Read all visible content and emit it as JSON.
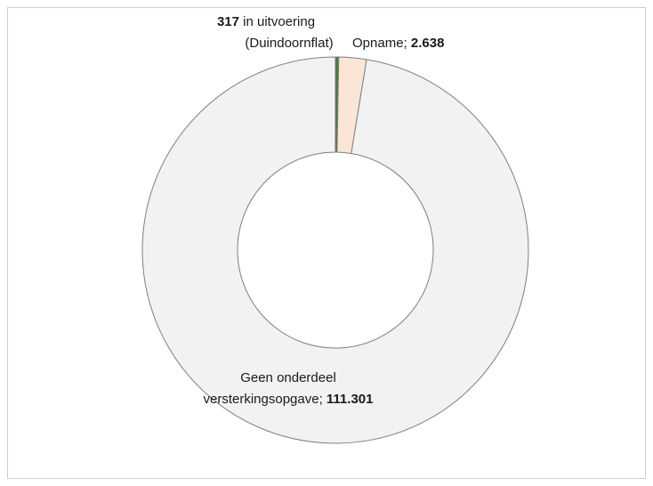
{
  "chart_data": {
    "type": "pie",
    "variant": "donut",
    "slices": [
      {
        "name": "in uitvoering",
        "value": 317,
        "color": "#4a7a3a",
        "label_value": "317",
        "label_text": " in uitvoering",
        "label_line2": "(Duindoornflat)"
      },
      {
        "name": "Opname",
        "value": 2638,
        "color": "#fbe5d6",
        "label_text": "Opname; ",
        "label_value": "2.638"
      },
      {
        "name": "Geen onderdeel versterkingsopgave",
        "value": 111301,
        "color": "#f2f2f2",
        "label_line1": "Geen onderdeel",
        "label_text": "versterkingsopgave; ",
        "label_value": "111.301"
      }
    ],
    "legend": "none",
    "grid": false
  }
}
